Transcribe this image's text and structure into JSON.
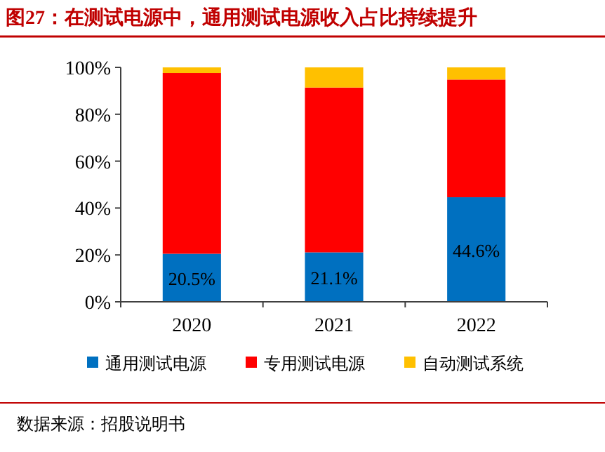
{
  "chart_data": {
    "type": "bar",
    "stacked": true,
    "title": "图27：在测试电源中，通用测试电源收入占比持续提升",
    "categories": [
      "2020",
      "2021",
      "2022"
    ],
    "series": [
      {
        "name": "通用测试电源",
        "color": "#0070c0",
        "values": [
          20.5,
          21.1,
          44.6
        ],
        "value_labels": [
          "20.5%",
          "21.1%",
          "44.6%"
        ]
      },
      {
        "name": "专用测试电源",
        "color": "#ff0000",
        "values": [
          77.1,
          70.3,
          50.2
        ]
      },
      {
        "name": "自动测试系统",
        "color": "#ffc000",
        "values": [
          2.4,
          8.6,
          5.2
        ]
      }
    ],
    "ylim": [
      0,
      100
    ],
    "yticks": [
      {
        "value": 0,
        "label": "0%"
      },
      {
        "value": 20,
        "label": "20%"
      },
      {
        "value": 40,
        "label": "40%"
      },
      {
        "value": 60,
        "label": "60%"
      },
      {
        "value": 80,
        "label": "80%"
      },
      {
        "value": 100,
        "label": "100%"
      }
    ],
    "grid": false,
    "legend": "bottom",
    "annotations": [
      "数据来源：招股说明书"
    ]
  }
}
